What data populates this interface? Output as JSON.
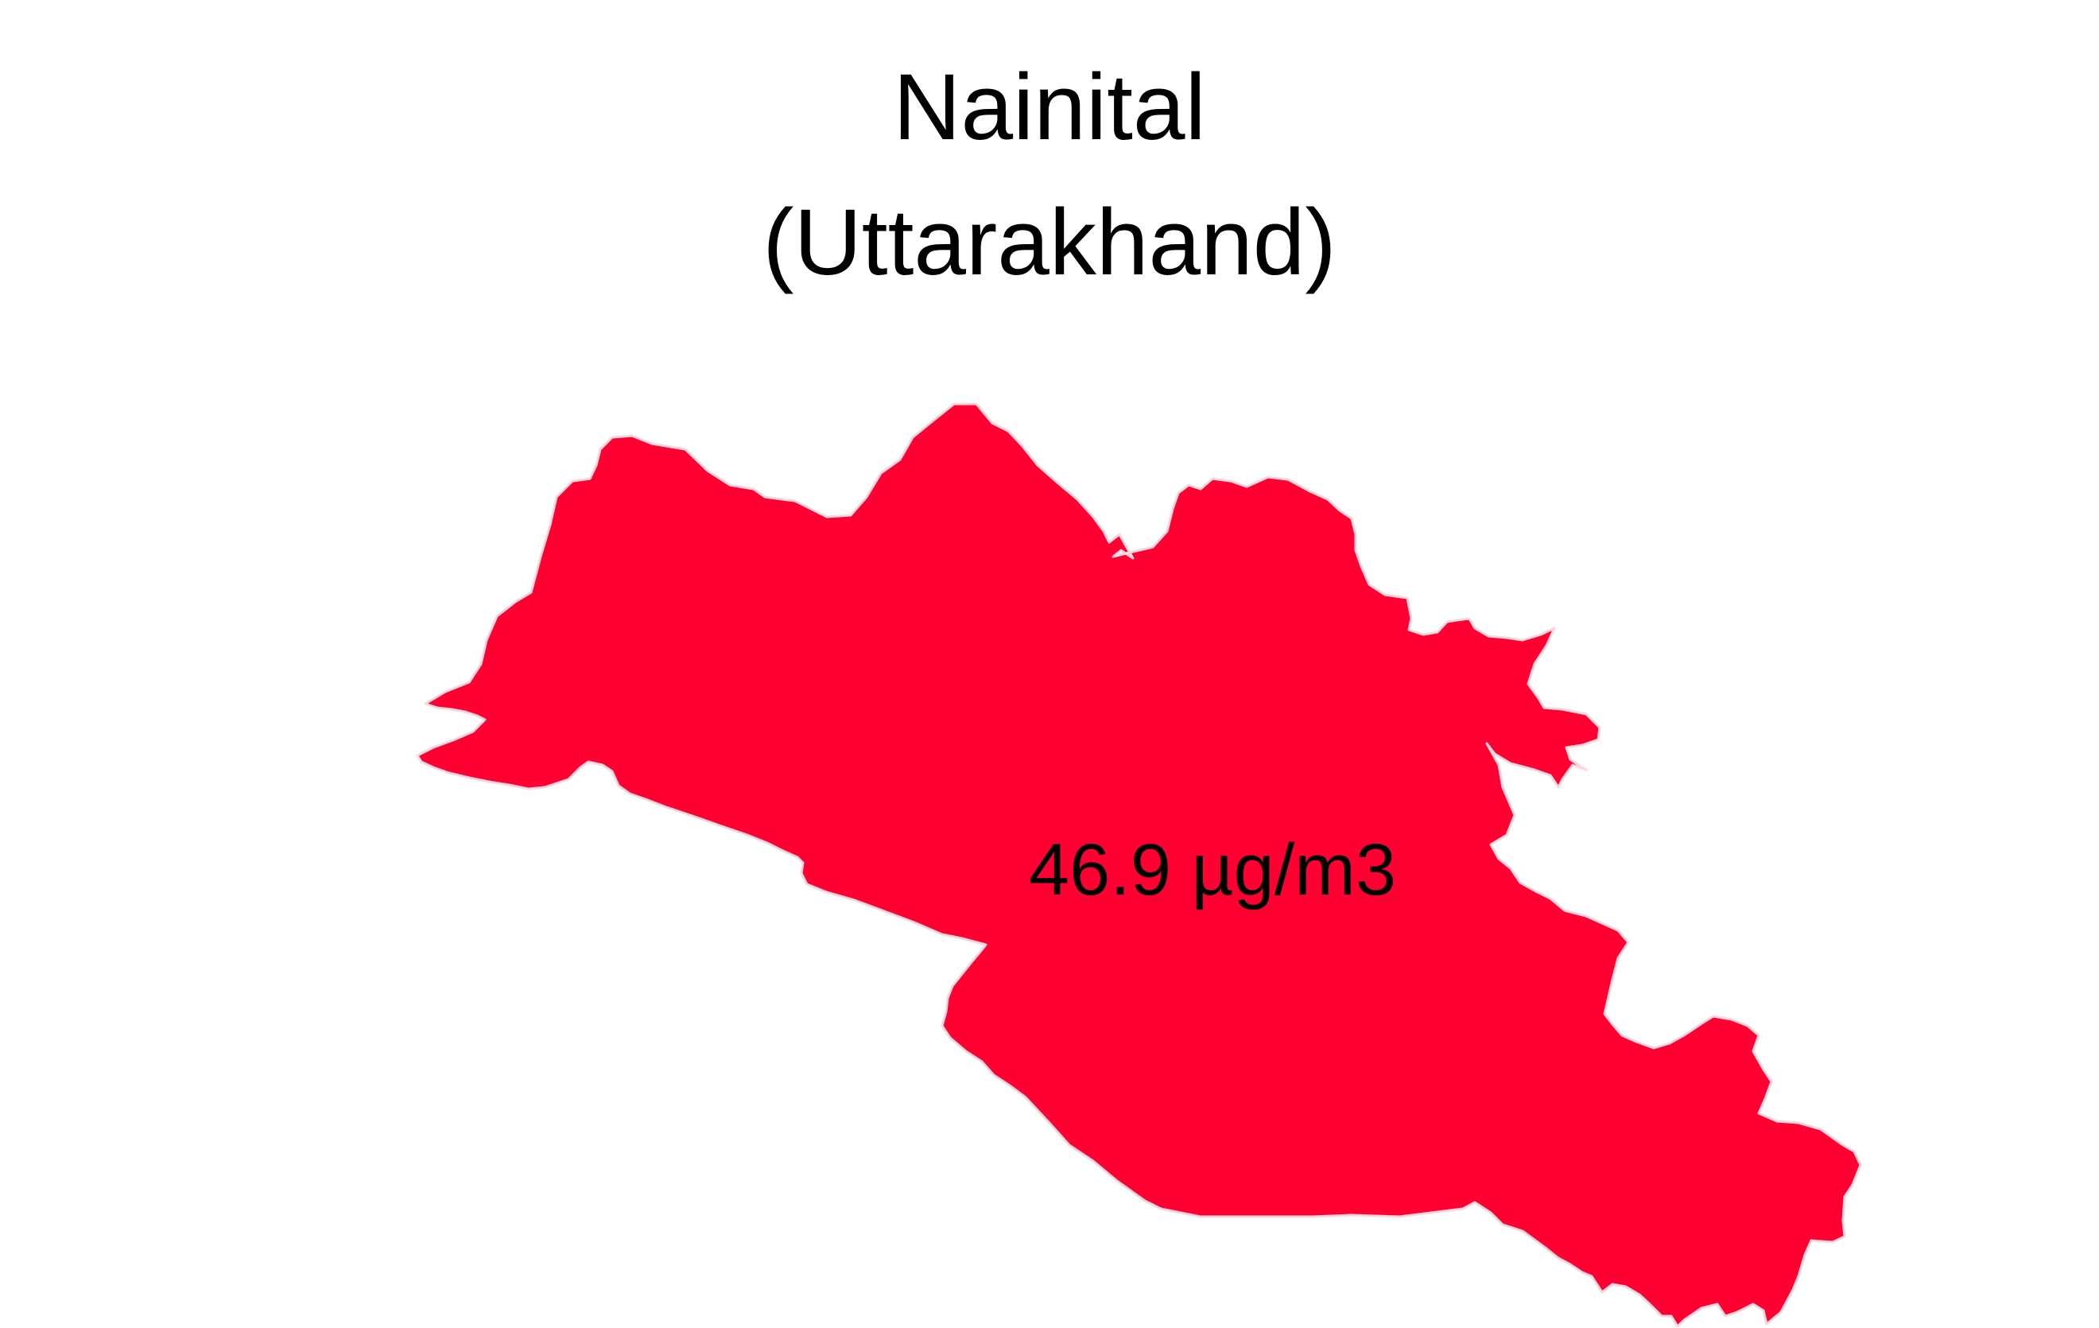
{
  "map": {
    "title": "Nainital",
    "subtitle": "(Uttarakhand)",
    "region_value_label": "46.9 µg/m3",
    "fill_color": "#ff0033",
    "outline_color": "#ffd6dc",
    "label_color": "#000000",
    "background_color": "#ffffff"
  }
}
